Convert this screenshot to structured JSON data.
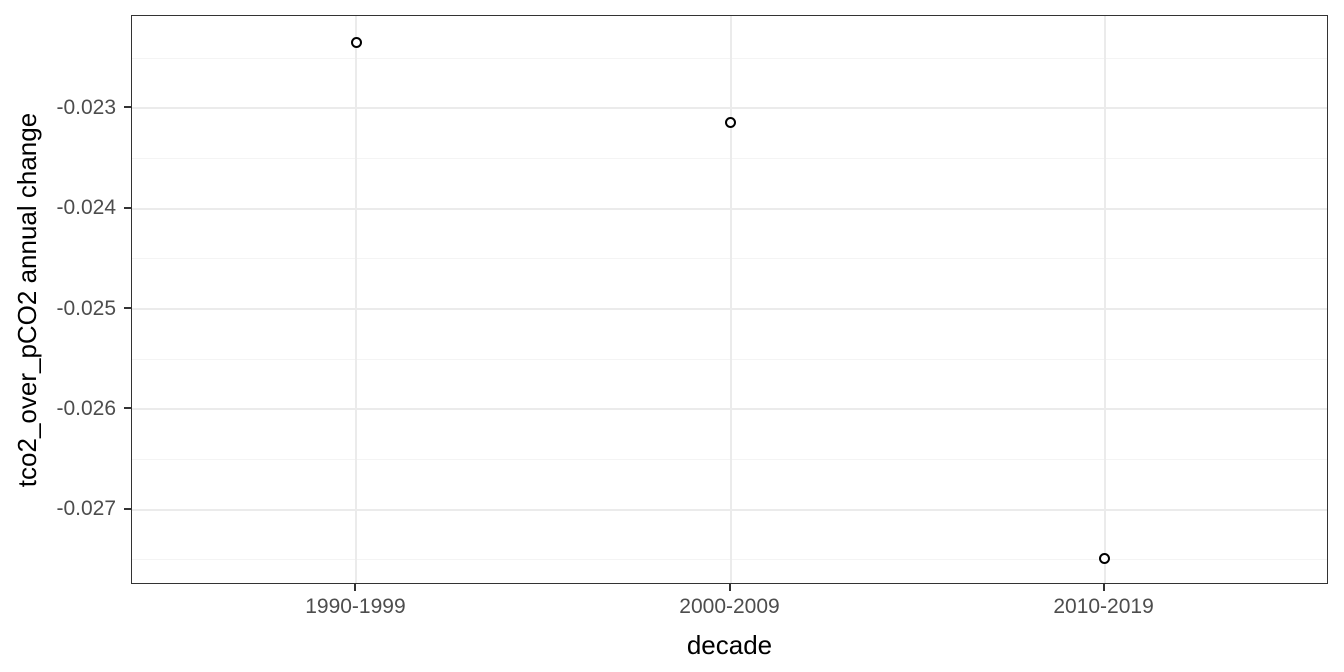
{
  "chart_data": {
    "type": "scatter",
    "title": "",
    "xlabel": "decade",
    "ylabel": "tco2_over_pCO2 annual change",
    "categories": [
      "1990-1999",
      "2000-2009",
      "2010-2019"
    ],
    "values": [
      -0.02234,
      -0.02314,
      -0.02749
    ],
    "yticks": [
      {
        "value": -0.023,
        "label": "-0.023"
      },
      {
        "value": -0.024,
        "label": "-0.024"
      },
      {
        "value": -0.025,
        "label": "-0.025"
      },
      {
        "value": -0.026,
        "label": "-0.026"
      },
      {
        "value": -0.027,
        "label": "-0.027"
      }
    ],
    "ylim": [
      -0.02775,
      -0.02208
    ],
    "minor_grid_step": 0.0005,
    "grid": "on",
    "legend": "none",
    "point_style": "open-circle",
    "colors": {
      "point_stroke": "#000000",
      "panel_border": "#333333",
      "grid_major": "#ebebeb",
      "grid_minor": "#f4f4f4",
      "tick_text": "#4d4d4d",
      "axis_title_text": "#000000",
      "background": "#ffffff"
    }
  }
}
